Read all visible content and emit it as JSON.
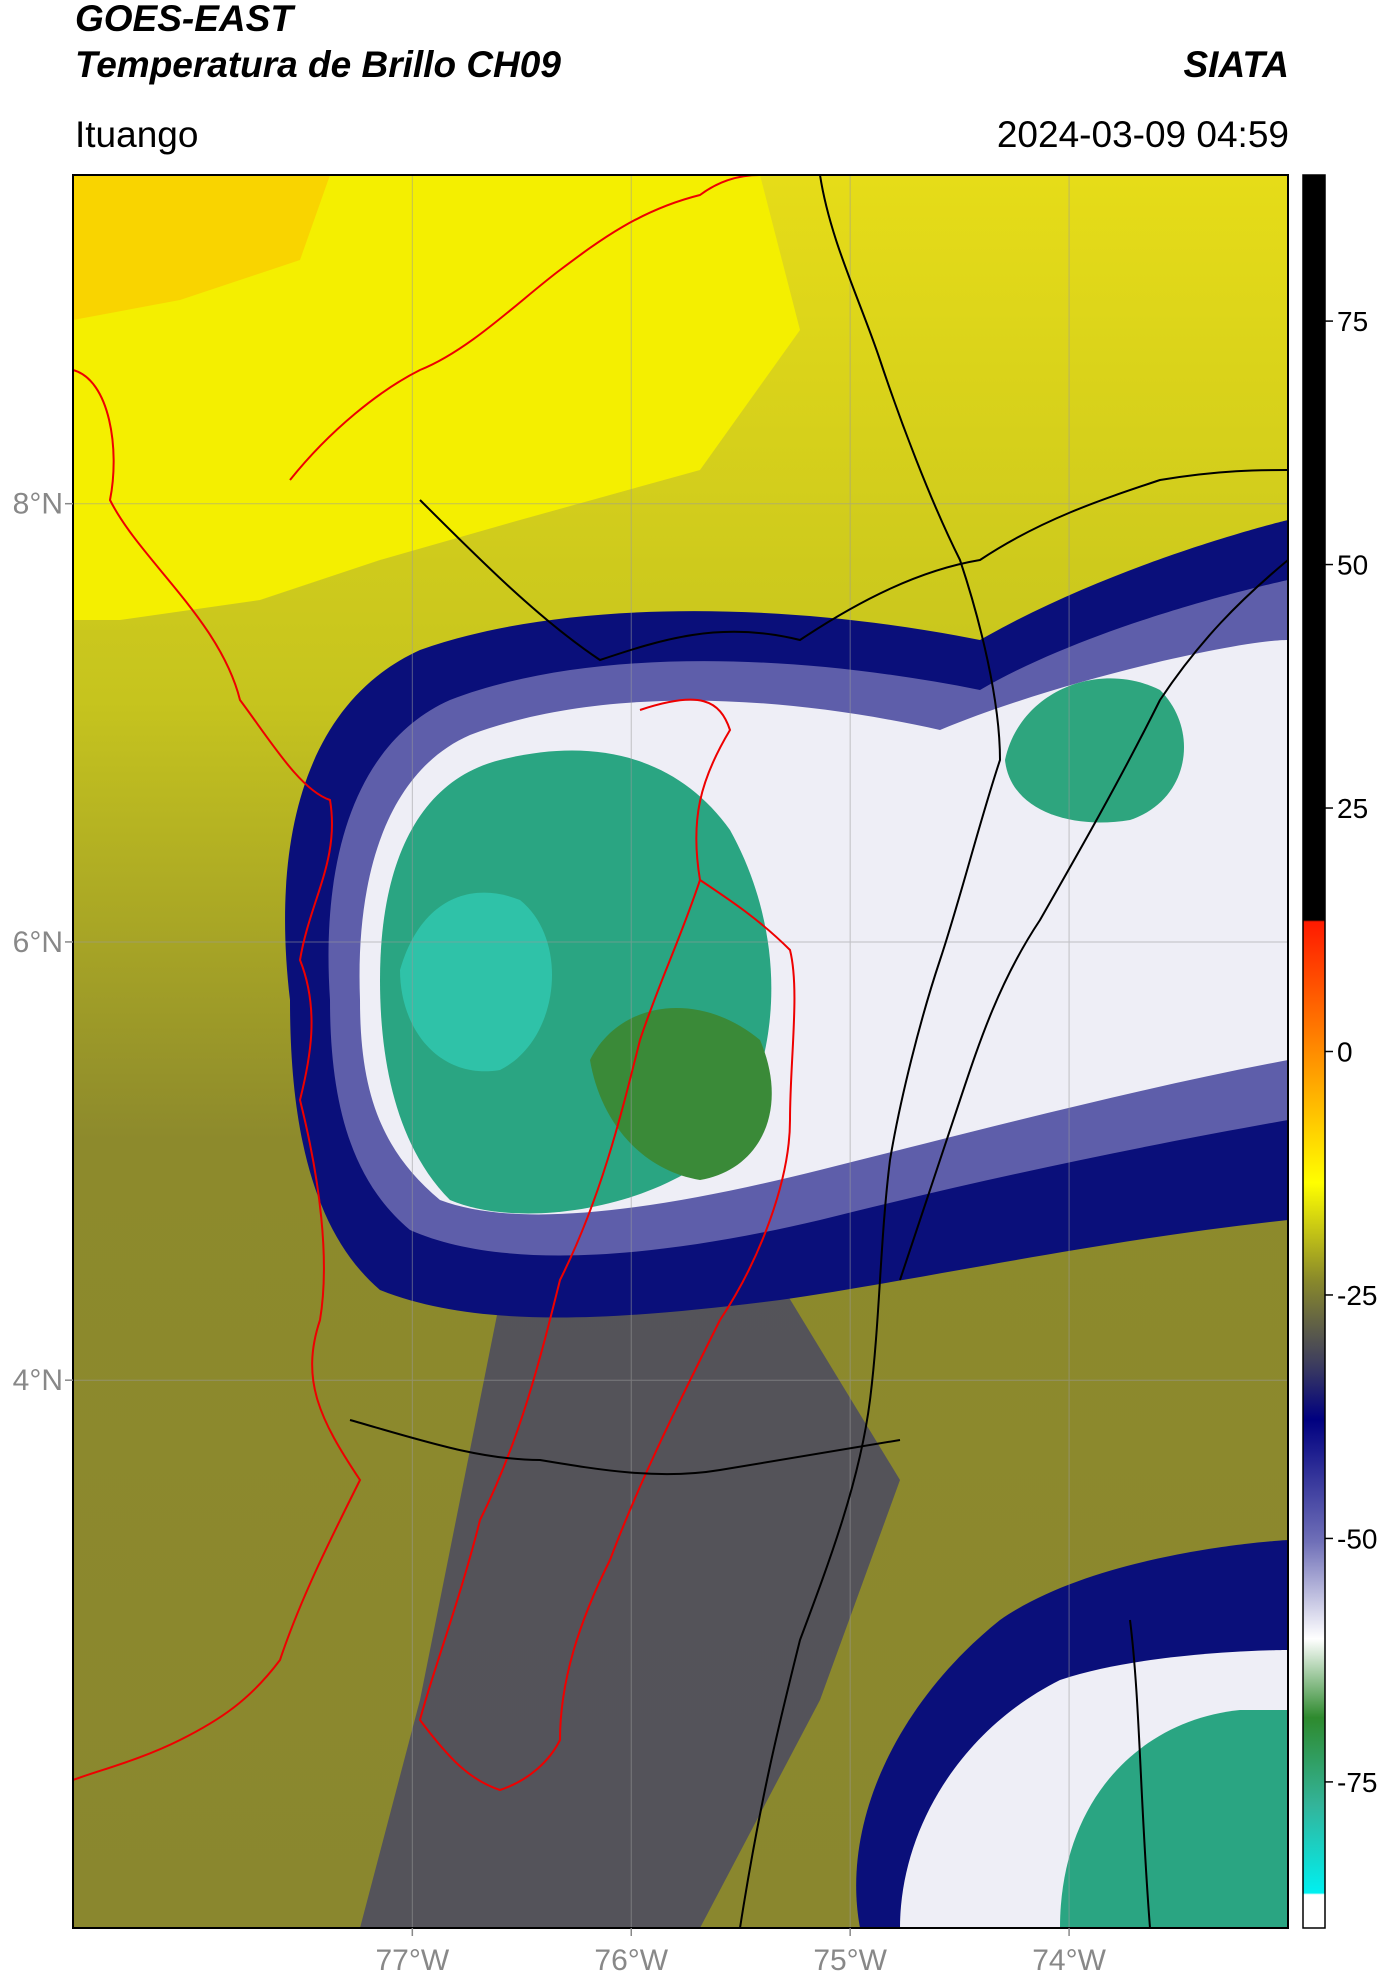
{
  "header": {
    "satellite": "GOES-EAST",
    "product": "Temperatura de Brillo CH09",
    "agency": "SIATA",
    "region": "Ituango",
    "timestamp": "2024-03-09 04:59"
  },
  "map": {
    "lon_range": [
      -78.55,
      -73.0
    ],
    "lat_range": [
      1.5,
      9.5
    ],
    "lat_ticks": [
      {
        "value": 8,
        "label": "8°N"
      },
      {
        "value": 6,
        "label": "6°N"
      },
      {
        "value": 4,
        "label": "4°N"
      }
    ],
    "lon_ticks": [
      {
        "value": -77,
        "label": "77°W"
      },
      {
        "value": -76,
        "label": "76°W"
      },
      {
        "value": -75,
        "label": "75°W"
      },
      {
        "value": -74,
        "label": "74°W"
      }
    ],
    "colors": {
      "warm_yellow": "#f2ee00",
      "olive": "#8f8a2a",
      "slate": "#4a4a60",
      "navy": "#0a0f7a",
      "cloud_white": "#f1f1f6",
      "green": "#3a8a38",
      "teal": "#2ab89a",
      "border_red": "#ee0000",
      "border_black": "#000000"
    }
  },
  "colorbar": {
    "range": [
      -90,
      90
    ],
    "ticks": [
      {
        "value": 75,
        "label": "75"
      },
      {
        "value": 50,
        "label": "50"
      },
      {
        "value": 25,
        "label": "25"
      },
      {
        "value": 0,
        "label": "0"
      },
      {
        "value": -25,
        "label": "-25"
      },
      {
        "value": -50,
        "label": "-50"
      },
      {
        "value": -75,
        "label": "-75"
      }
    ]
  }
}
